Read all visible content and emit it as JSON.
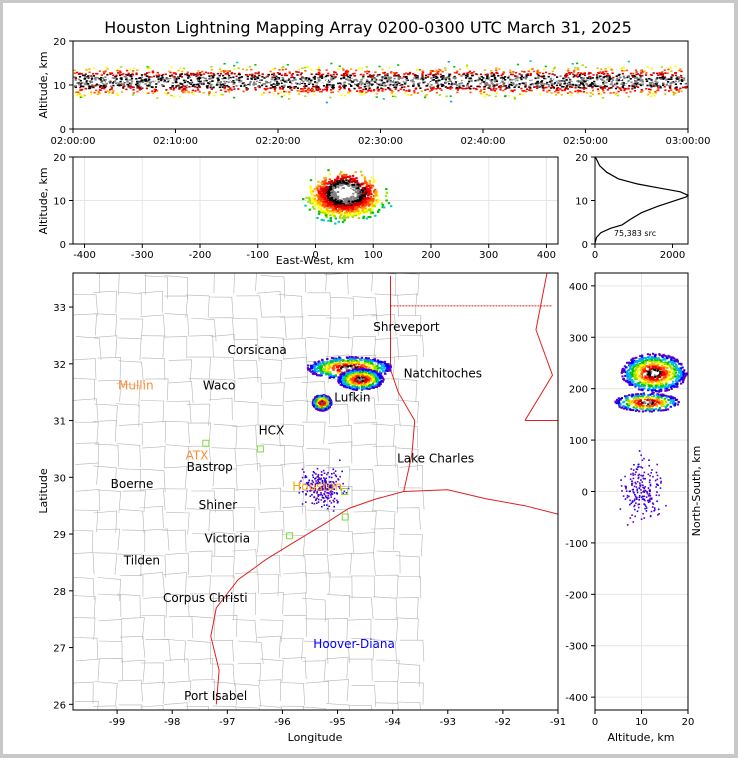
{
  "title": "Houston Lightning Mapping Array 0200-0300 UTC March 31, 2025",
  "chart_data": [
    {
      "id": "altitude-time",
      "type": "scatter",
      "xlabel": "",
      "ylabel": "Altitude, km",
      "xticks": [
        "02:00:00",
        "02:10:00",
        "02:20:00",
        "02:30:00",
        "02:40:00",
        "02:50:00",
        "03:00:00"
      ],
      "xlim": [
        "02:00:00",
        "03:00:00"
      ],
      "ylim": [
        0,
        20
      ],
      "yticks": [
        0,
        10,
        20
      ],
      "density_band_km": [
        2,
        20
      ],
      "peak_altitude_km": 11
    },
    {
      "id": "east-west-altitude",
      "type": "scatter",
      "xlabel": "East-West, km",
      "ylabel": "Altitude, km",
      "xlim": [
        -420,
        420
      ],
      "xticks": [
        -400,
        -300,
        -200,
        -100,
        0,
        100,
        200,
        300,
        400
      ],
      "ylim": [
        0,
        20
      ],
      "yticks": [
        0,
        10,
        20
      ],
      "grid": true,
      "core_x_range_km": [
        -20,
        120
      ]
    },
    {
      "id": "altitude-histogram",
      "type": "line",
      "xlim": [
        0,
        2400
      ],
      "xticks": [
        0,
        2000
      ],
      "ylim": [
        0,
        20
      ],
      "yticks": [
        0,
        10,
        20
      ],
      "annotation": "75,383 src",
      "points": [
        [
          0,
          0.2
        ],
        [
          40,
          1.5
        ],
        [
          150,
          2.6
        ],
        [
          400,
          3.6
        ],
        [
          700,
          4.4
        ],
        [
          900,
          5.6
        ],
        [
          1200,
          7.2
        ],
        [
          1600,
          8.6
        ],
        [
          2000,
          9.8
        ],
        [
          2350,
          10.8
        ],
        [
          2400,
          11.2
        ],
        [
          2200,
          12
        ],
        [
          1700,
          12.8
        ],
        [
          1100,
          13.8
        ],
        [
          600,
          15
        ],
        [
          300,
          16.5
        ],
        [
          120,
          18
        ],
        [
          40,
          19.5
        ],
        [
          0,
          20
        ]
      ]
    },
    {
      "id": "plan-view-map",
      "type": "scatter",
      "xlabel": "Longitude",
      "ylabel": "Latitude",
      "xlim": [
        -99.8,
        -91
      ],
      "ylim": [
        25.9,
        33.6
      ],
      "xticks": [
        -99,
        -98,
        -97,
        -96,
        -95,
        -94,
        -93,
        -92,
        -91
      ],
      "yticks": [
        26,
        27,
        28,
        29,
        30,
        31,
        32,
        33
      ],
      "cities": [
        {
          "name": "Shreveport",
          "lon": -93.75,
          "lat": 32.58,
          "color": "#000000"
        },
        {
          "name": "Corsicana",
          "lon": -96.46,
          "lat": 32.17,
          "color": "#000000"
        },
        {
          "name": "Mullin",
          "lon": -98.66,
          "lat": 31.55,
          "color": "#ff8c3a"
        },
        {
          "name": "Waco",
          "lon": -97.15,
          "lat": 31.55,
          "color": "#000000"
        },
        {
          "name": "Natchitoches",
          "lon": -93.09,
          "lat": 31.76,
          "color": "#000000"
        },
        {
          "name": "Lufkin",
          "lon": -94.73,
          "lat": 31.34,
          "color": "#000000"
        },
        {
          "name": "HCX",
          "lon": -96.2,
          "lat": 30.75,
          "color": "#000000"
        },
        {
          "name": "ATX",
          "lon": -97.55,
          "lat": 30.31,
          "color": "#ff8c3a"
        },
        {
          "name": "Bastrop",
          "lon": -97.32,
          "lat": 30.11,
          "color": "#000000"
        },
        {
          "name": "Houston",
          "lon": -95.37,
          "lat": 29.77,
          "color": "#ffa500"
        },
        {
          "name": "Lake Charles",
          "lon": -93.22,
          "lat": 30.26,
          "color": "#000000"
        },
        {
          "name": "Boerne",
          "lon": -98.73,
          "lat": 29.81,
          "color": "#000000"
        },
        {
          "name": "Shiner",
          "lon": -97.17,
          "lat": 29.44,
          "color": "#000000"
        },
        {
          "name": "Victoria",
          "lon": -97.0,
          "lat": 28.85,
          "color": "#000000"
        },
        {
          "name": "Tilden",
          "lon": -98.55,
          "lat": 28.46,
          "color": "#000000"
        },
        {
          "name": "Corpus Christi",
          "lon": -97.4,
          "lat": 27.8,
          "color": "#000000"
        },
        {
          "name": "Hoover-Diana",
          "lon": -94.7,
          "lat": 26.99,
          "color": "#0000ff"
        },
        {
          "name": "Port Isabel",
          "lon": -97.21,
          "lat": 26.08,
          "color": "#000000"
        }
      ],
      "stations": [
        [
          -97.39,
          30.6
        ],
        [
          -95.87,
          28.97
        ],
        [
          -94.87,
          29.75
        ],
        [
          -94.86,
          29.3
        ],
        [
          -96.4,
          30.5
        ]
      ],
      "storm_cells": [
        {
          "lon": -94.8,
          "lat": 31.94,
          "rx": 0.78,
          "ry": 0.2
        },
        {
          "lon": -94.6,
          "lat": 31.74,
          "rx": 0.42,
          "ry": 0.19
        },
        {
          "lon": -95.3,
          "lat": 31.33,
          "rx": 0.17,
          "ry": 0.14
        }
      ]
    },
    {
      "id": "altitude-north-south",
      "type": "scatter",
      "xlabel": "Altitude, km",
      "ylabel": "North-South, km",
      "xlim": [
        0,
        20
      ],
      "xticks": [
        0,
        10,
        20
      ],
      "ylim": [
        -425,
        425
      ],
      "yticks": [
        -400,
        -300,
        -200,
        -100,
        0,
        100,
        200,
        300,
        400
      ],
      "grid": true
    }
  ]
}
